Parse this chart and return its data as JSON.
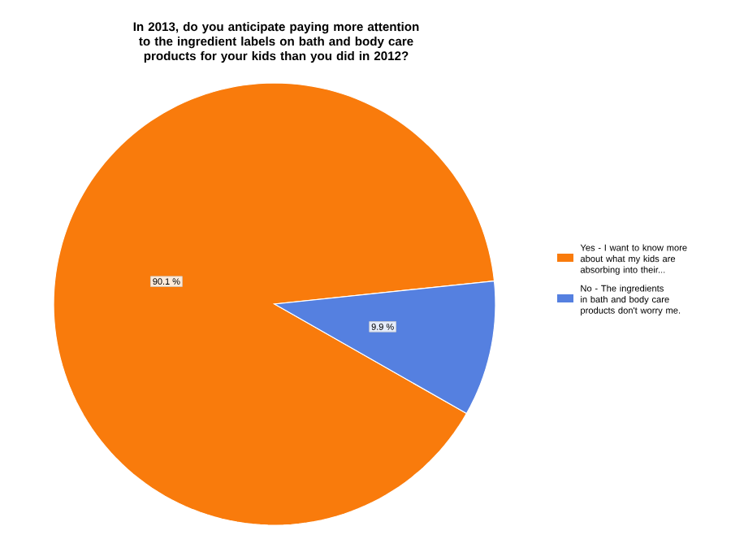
{
  "chart_data": {
    "type": "pie",
    "title": "In 2013, do you anticipate paying more attention to the ingredient labels on bath and body care products for your kids than you did in 2012?",
    "categories": [
      "Yes - I want to know more about what my kids are absorbing into their...",
      "No - The ingredients in bath and body care products don't worry me."
    ],
    "values": [
      90.1,
      9.9
    ],
    "value_labels": [
      "90.1 %",
      "9.9 %"
    ],
    "colors": [
      "#f97b0c",
      "#5580e0"
    ],
    "legend": "right"
  }
}
